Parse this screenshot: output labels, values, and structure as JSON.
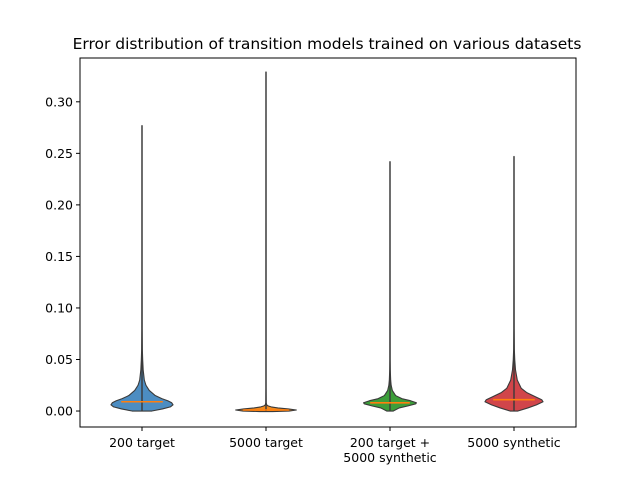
{
  "chart_data": {
    "type": "violin",
    "title": "Error distribution of transition models trained on various datasets",
    "xlabel": "",
    "ylabel": "",
    "ylim": [
      -0.0155,
      0.3425
    ],
    "yticks": [
      0.0,
      0.05,
      0.1,
      0.15,
      0.2,
      0.25,
      0.3
    ],
    "ytick_labels": [
      "0.00",
      "0.05",
      "0.10",
      "0.15",
      "0.20",
      "0.25",
      "0.30"
    ],
    "grid": false,
    "categories": [
      "200 target",
      "5000 target",
      "200 target +\n5000 synthetic",
      "5000 synthetic"
    ],
    "median_color": "#ff7f0e",
    "series": [
      {
        "category": "200 target",
        "color": "#4c8dc2",
        "min": 0.0,
        "max": 0.277,
        "median": 0.009,
        "profile": [
          [
            0.0,
            0.3
          ],
          [
            0.002,
            0.62
          ],
          [
            0.004,
            0.86
          ],
          [
            0.006,
            0.94
          ],
          [
            0.008,
            0.9
          ],
          [
            0.01,
            0.78
          ],
          [
            0.012,
            0.6
          ],
          [
            0.015,
            0.4
          ],
          [
            0.02,
            0.22
          ],
          [
            0.025,
            0.12
          ],
          [
            0.03,
            0.07
          ],
          [
            0.04,
            0.035
          ],
          [
            0.05,
            0.02
          ],
          [
            0.06,
            0.01
          ],
          [
            0.08,
            0.004
          ]
        ]
      },
      {
        "category": "5000 target",
        "color": "#f28a1e",
        "min": 0.0,
        "max": 0.329,
        "median": 0.001,
        "profile": [
          [
            -0.0005,
            0.2
          ],
          [
            0.0,
            0.7
          ],
          [
            0.001,
            0.92
          ],
          [
            0.002,
            0.68
          ],
          [
            0.003,
            0.36
          ],
          [
            0.004,
            0.16
          ],
          [
            0.005,
            0.06
          ],
          [
            0.006,
            0.02
          ],
          [
            0.008,
            0.005
          ]
        ]
      },
      {
        "category": "200 target +\n5000 synthetic",
        "color": "#3c9e3a",
        "min": 0.0,
        "max": 0.242,
        "median": 0.008,
        "profile": [
          [
            0.0,
            0.1
          ],
          [
            0.003,
            0.28
          ],
          [
            0.005,
            0.55
          ],
          [
            0.007,
            0.78
          ],
          [
            0.008,
            0.8
          ],
          [
            0.01,
            0.62
          ],
          [
            0.012,
            0.36
          ],
          [
            0.015,
            0.17
          ],
          [
            0.02,
            0.07
          ],
          [
            0.025,
            0.035
          ],
          [
            0.03,
            0.02
          ],
          [
            0.04,
            0.008
          ],
          [
            0.05,
            0.003
          ]
        ]
      },
      {
        "category": "5000 synthetic",
        "color": "#d1454a",
        "min": 0.0,
        "max": 0.247,
        "median": 0.011,
        "profile": [
          [
            0.0,
            0.12
          ],
          [
            0.003,
            0.42
          ],
          [
            0.006,
            0.68
          ],
          [
            0.009,
            0.88
          ],
          [
            0.011,
            0.84
          ],
          [
            0.014,
            0.64
          ],
          [
            0.018,
            0.38
          ],
          [
            0.022,
            0.22
          ],
          [
            0.03,
            0.1
          ],
          [
            0.04,
            0.045
          ],
          [
            0.05,
            0.022
          ],
          [
            0.06,
            0.01
          ],
          [
            0.08,
            0.004
          ]
        ]
      }
    ]
  }
}
